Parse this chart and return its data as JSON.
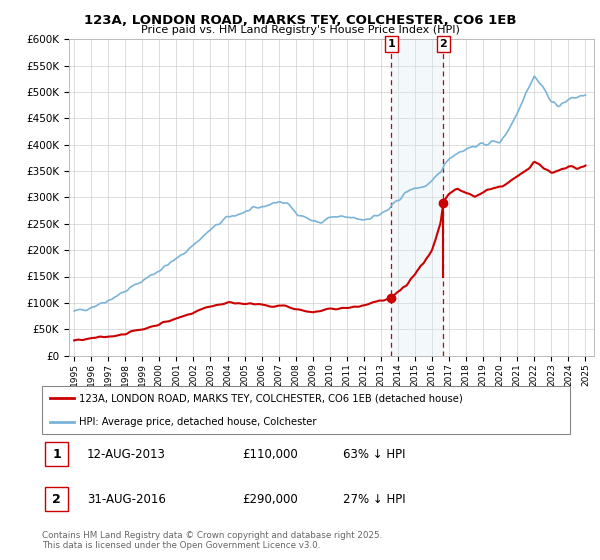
{
  "title": "123A, LONDON ROAD, MARKS TEY, COLCHESTER, CO6 1EB",
  "subtitle": "Price paid vs. HM Land Registry's House Price Index (HPI)",
  "ylim": [
    0,
    600000
  ],
  "yticks": [
    0,
    50000,
    100000,
    150000,
    200000,
    250000,
    300000,
    350000,
    400000,
    450000,
    500000,
    550000,
    600000
  ],
  "background_color": "#ffffff",
  "grid_color": "#d0d0d0",
  "legend_entries": [
    "123A, LONDON ROAD, MARKS TEY, COLCHESTER, CO6 1EB (detached house)",
    "HPI: Average price, detached house, Colchester"
  ],
  "sale1_year": 2013.62,
  "sale1_value": 110000,
  "sale2_year": 2016.67,
  "sale2_value": 290000,
  "annotation1": {
    "label": "1",
    "date": "12-AUG-2013",
    "price": "£110,000",
    "pct": "63% ↓ HPI"
  },
  "annotation2": {
    "label": "2",
    "date": "31-AUG-2016",
    "price": "£290,000",
    "pct": "27% ↓ HPI"
  },
  "footer": "Contains HM Land Registry data © Crown copyright and database right 2025.\nThis data is licensed under the Open Government Licence v3.0.",
  "hpi_color": "#7ab4d8",
  "price_color": "#cc0000",
  "shade_color": "#daeaf5",
  "xlim_left": 1994.7,
  "xlim_right": 2025.5
}
